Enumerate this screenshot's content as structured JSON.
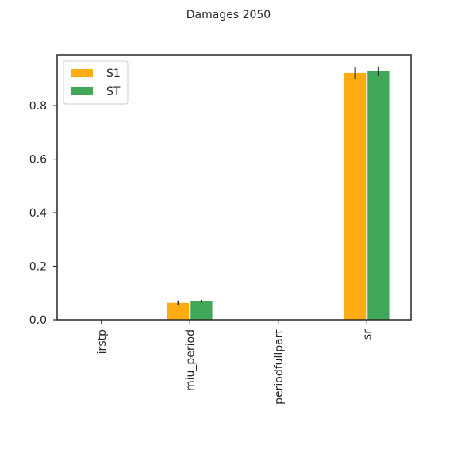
{
  "chart_data": {
    "type": "bar",
    "title": "Damages 2050",
    "xlabel": "",
    "ylabel": "",
    "categories": [
      "irstp",
      "miu_period",
      "periodfullpart",
      "sr"
    ],
    "series": [
      {
        "name": "S1",
        "color": "#ffac12",
        "values": [
          0.0,
          0.063,
          0.0,
          0.922
        ],
        "errors": [
          0.0,
          0.009,
          0.0,
          0.021
        ]
      },
      {
        "name": "ST",
        "color": "#41a85a",
        "values": [
          0.0,
          0.069,
          0.0,
          0.928
        ],
        "errors": [
          0.0,
          0.005,
          0.0,
          0.018
        ]
      }
    ],
    "ylim": [
      0,
      0.99
    ],
    "yticks": [
      "0.0",
      "0.2",
      "0.4",
      "0.6",
      "0.8"
    ],
    "grid": false,
    "legend_position": "top-left"
  }
}
